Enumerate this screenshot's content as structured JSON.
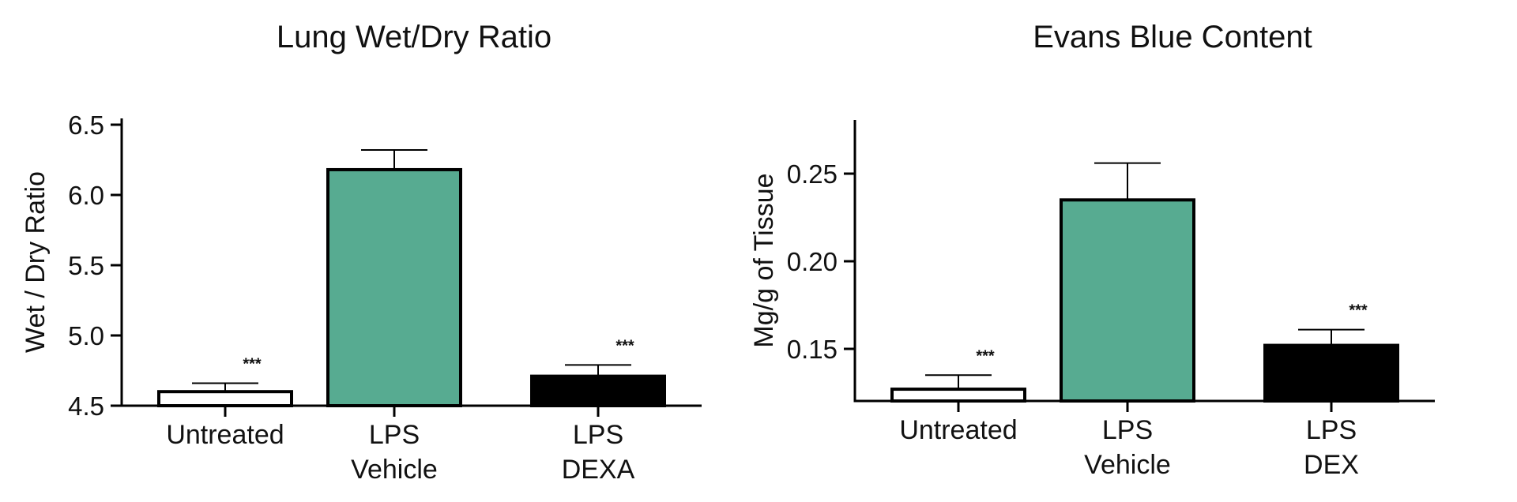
{
  "chart_data": [
    {
      "type": "bar",
      "title": "Lung Wet/Dry Ratio",
      "ylabel": "Wet / Dry Ratio",
      "xlabel": "",
      "categories": [
        [
          "Untreated"
        ],
        [
          "LPS",
          "Vehicle"
        ],
        [
          "LPS",
          "DEXA"
        ]
      ],
      "values": [
        4.6,
        6.18,
        4.71
      ],
      "errors": [
        0.06,
        0.14,
        0.08
      ],
      "significance": [
        "***",
        "",
        "***"
      ],
      "ylim": [
        4.5,
        6.5
      ],
      "yticks": [
        4.5,
        5.0,
        5.5,
        6.0,
        6.5
      ],
      "ytick_labels": [
        "4.5",
        "5.0",
        "5.5",
        "6.0",
        "6.5"
      ],
      "bar_colors": [
        "#ffffff",
        "#57ab91",
        "#000000"
      ],
      "grid": false
    },
    {
      "type": "bar",
      "title": "Evans Blue Content",
      "ylabel": "Mg/g of Tissue",
      "xlabel": "",
      "categories": [
        [
          "Untreated"
        ],
        [
          "LPS",
          "Vehicle"
        ],
        [
          "LPS",
          "DEX"
        ]
      ],
      "values": [
        0.127,
        0.235,
        0.152
      ],
      "errors": [
        0.008,
        0.021,
        0.009
      ],
      "significance": [
        "***",
        "",
        "***"
      ],
      "ylim": [
        0.12,
        0.28
      ],
      "yticks": [
        0.15,
        0.2,
        0.25
      ],
      "ytick_labels": [
        "0.15",
        "0.20",
        "0.25"
      ],
      "bar_colors": [
        "#ffffff",
        "#57ab91",
        "#000000"
      ],
      "grid": false
    }
  ]
}
